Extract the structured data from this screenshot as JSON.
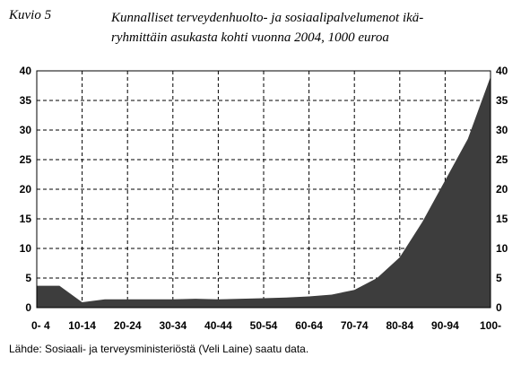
{
  "figure": {
    "label": "Kuvio 5",
    "title_lines": [
      "Kunnalliset terveydenhuolto- ja sosiaalipalvelumenot ikä-",
      "ryhmittäin asukasta kohti vuonna 2004, 1000 euroa"
    ],
    "source": "Lähde: Sosiaali- ja terveysministeriöstä (Veli Laine) saatu data."
  },
  "chart_data": {
    "type": "area",
    "title": "Kunnalliset terveydenhuolto- ja sosiaalipalvelumenot ikäryhmittäin asukasta kohti vuonna 2004, 1000 euroa",
    "xlabel": "",
    "ylabel": "",
    "x_tick_labels": [
      "0- 4",
      "10-14",
      "20-24",
      "30-34",
      "40-44",
      "50-54",
      "60-64",
      "70-74",
      "80-84",
      "90-94",
      "100-"
    ],
    "y_ticks": [
      0,
      5,
      10,
      15,
      20,
      25,
      30,
      35,
      40
    ],
    "ylim": [
      0,
      40
    ],
    "y_axis_both_sides": true,
    "grid": "dashed",
    "fill_color": "#3d3d3d",
    "series": [
      {
        "values": [
          3.7,
          3.7,
          0.9,
          1.4,
          1.4,
          1.4,
          1.4,
          1.5,
          1.4,
          1.5,
          1.6,
          1.7,
          1.9,
          2.2,
          3.0,
          5.0,
          8.5,
          14.5,
          21.5,
          28.5,
          39.0
        ]
      }
    ]
  }
}
